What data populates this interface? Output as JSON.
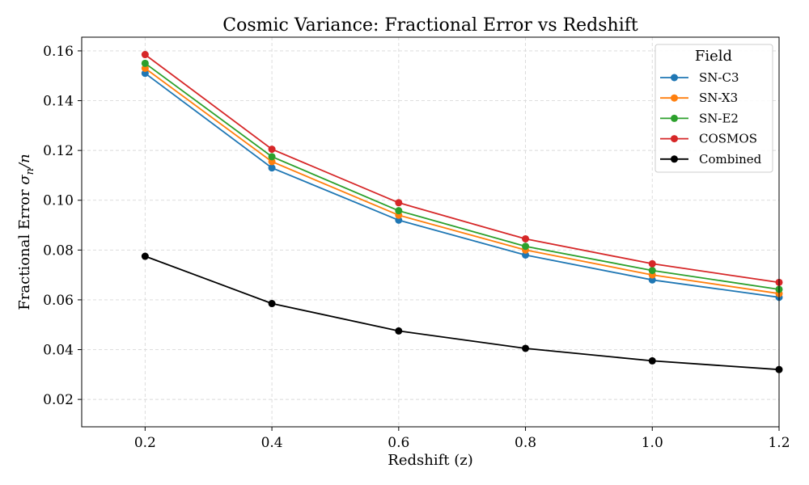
{
  "chart_data": {
    "type": "line",
    "title": "Cosmic Variance: Fractional Error vs Redshift",
    "xlabel": "Redshift (z)",
    "ylabel_main": "Fractional Error ",
    "ylabel_sigma": "σ",
    "ylabel_sub": "n",
    "ylabel_tail": "/n",
    "xlim": [
      0.1,
      1.2
    ],
    "ylim": [
      0.009,
      0.1655
    ],
    "x_ticks": [
      0.2,
      0.4,
      0.6,
      0.8,
      1.0,
      1.2
    ],
    "x_tick_labels": [
      "0.2",
      "0.4",
      "0.6",
      "0.8",
      "1.0",
      "1.2"
    ],
    "y_ticks": [
      0.02,
      0.04,
      0.06,
      0.08,
      0.1,
      0.12,
      0.14,
      0.16
    ],
    "y_tick_labels": [
      "0.02",
      "0.04",
      "0.06",
      "0.08",
      "0.10",
      "0.12",
      "0.14",
      "0.16"
    ],
    "grid": true,
    "legend_placement": "top-right",
    "legend_title": "Field",
    "x": [
      0.2,
      0.4,
      0.6,
      0.8,
      1.0,
      1.2
    ],
    "series": [
      {
        "name": "SN-C3",
        "color": "#1f77b4",
        "values": [
          0.151,
          0.113,
          0.092,
          0.078,
          0.068,
          0.061
        ]
      },
      {
        "name": "SN-X3",
        "color": "#ff7f0e",
        "values": [
          0.153,
          0.1155,
          0.094,
          0.08,
          0.07,
          0.0625
        ]
      },
      {
        "name": "SN-E2",
        "color": "#2ca02c",
        "values": [
          0.155,
          0.1175,
          0.0958,
          0.0815,
          0.0718,
          0.0642
        ]
      },
      {
        "name": "COSMOS",
        "color": "#d62728",
        "values": [
          0.1585,
          0.1205,
          0.099,
          0.0845,
          0.0745,
          0.067
        ]
      },
      {
        "name": "Combined",
        "color": "#000000",
        "values": [
          0.0775,
          0.0585,
          0.0475,
          0.0405,
          0.0355,
          0.032
        ]
      }
    ]
  }
}
